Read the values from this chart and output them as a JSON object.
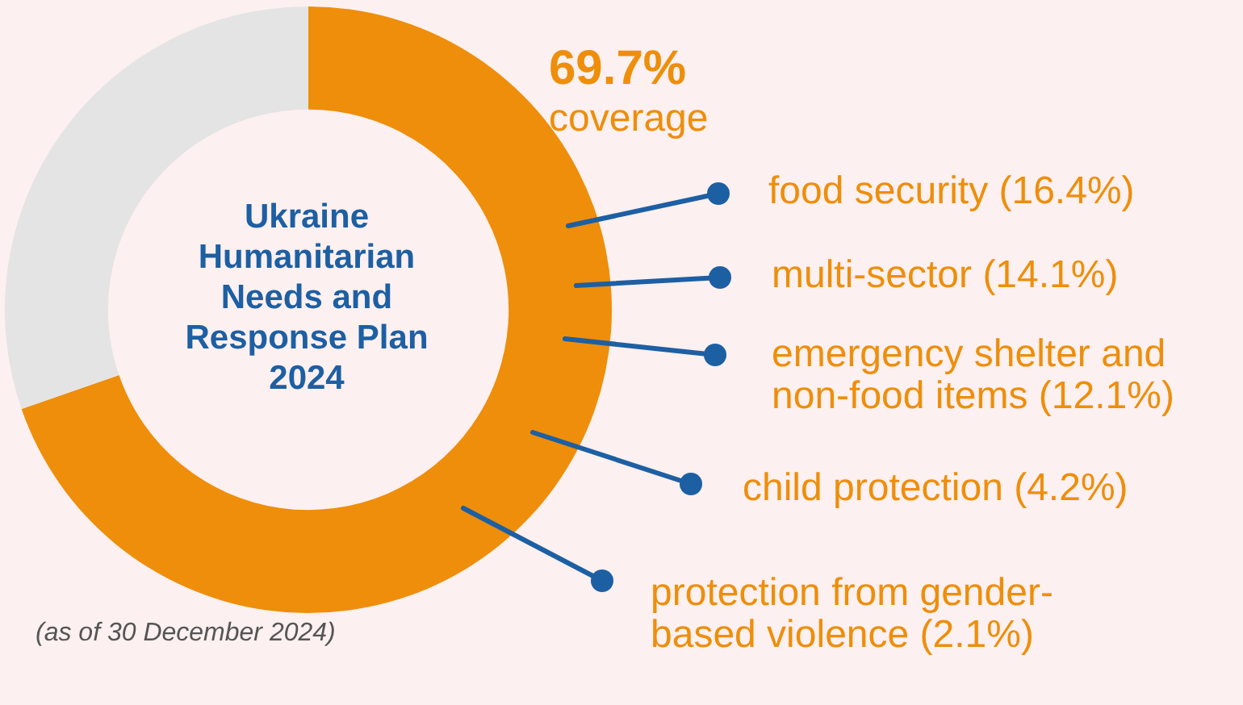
{
  "chart_data": {
    "type": "donut",
    "title": "Ukraine Humanitarian Needs and Response Plan 2024",
    "categories": [
      "coverage",
      null
    ],
    "values": [
      69.7,
      30.3
    ],
    "colors": [
      "#ee8e0a",
      "#e4e4e4"
    ],
    "value_labels": [
      "69.7%",
      null
    ],
    "legend": false,
    "annotations": [
      "food security (16.4%)",
      "multi-sector (14.1%)",
      "emergency shelter and non-food items (12.1%)",
      "child protection (4.2%)",
      "protection from gender-based violence (2.1%)",
      "(as of 30 December 2024)"
    ]
  }
}
